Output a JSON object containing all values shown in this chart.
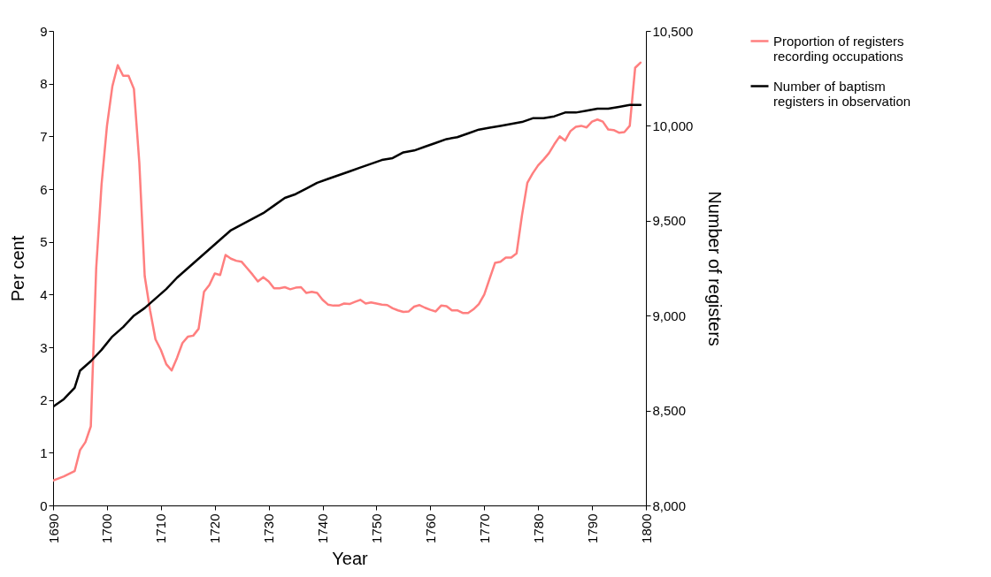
{
  "chart_data": {
    "type": "line",
    "xlabel": "Year",
    "ylabel": "Per cent",
    "y2label": "Number of registers",
    "xlim": [
      1690,
      1800
    ],
    "xticks": [
      1690,
      1700,
      1710,
      1720,
      1730,
      1740,
      1750,
      1760,
      1770,
      1780,
      1790,
      1800
    ],
    "ylim": [
      0,
      9
    ],
    "yticks": [
      0,
      1,
      2,
      3,
      4,
      5,
      6,
      7,
      8,
      9
    ],
    "y2lim": [
      8000,
      10500
    ],
    "y2ticks": [
      {
        "value": 8000,
        "label": "8,000"
      },
      {
        "value": 8500,
        "label": "8,500"
      },
      {
        "value": 9000,
        "label": "9,000"
      },
      {
        "value": 9500,
        "label": "9,500"
      },
      {
        "value": 10000,
        "label": "10,000"
      },
      {
        "value": 10500,
        "label": "10,500"
      }
    ],
    "grid": false,
    "legend": "right",
    "marker": "none",
    "line_style": "solid",
    "series": [
      {
        "name": "Proportion of registers recording occupations",
        "color": "#ff7f7f",
        "x": [
          1690,
          1692,
          1694,
          1695,
          1696,
          1697,
          1698,
          1699,
          1700,
          1701,
          1702,
          1703,
          1704,
          1705,
          1706,
          1707,
          1708,
          1709,
          1710,
          1711,
          1712,
          1713,
          1714,
          1715,
          1716,
          1717,
          1718,
          1719,
          1720,
          1721,
          1722,
          1723,
          1724,
          1725,
          1726,
          1727,
          1728,
          1729,
          1730,
          1731,
          1732,
          1733,
          1734,
          1735,
          1736,
          1737,
          1738,
          1739,
          1740,
          1741,
          1742,
          1743,
          1744,
          1745,
          1746,
          1747,
          1748,
          1749,
          1750,
          1751,
          1752,
          1753,
          1754,
          1755,
          1756,
          1757,
          1758,
          1759,
          1760,
          1761,
          1762,
          1763,
          1764,
          1765,
          1766,
          1767,
          1768,
          1769,
          1770,
          1771,
          1772,
          1773,
          1774,
          1775,
          1776,
          1777,
          1778,
          1779,
          1780,
          1781,
          1782,
          1783,
          1784,
          1785,
          1786,
          1787,
          1788,
          1789,
          1790,
          1791,
          1792,
          1793,
          1794,
          1795,
          1796,
          1797,
          1798,
          1799
        ],
        "values": [
          0.47,
          0.55,
          0.65,
          1.05,
          1.2,
          1.5,
          4.5,
          6.1,
          7.2,
          7.95,
          8.35,
          8.15,
          8.15,
          7.9,
          6.5,
          4.35,
          3.7,
          3.15,
          2.95,
          2.68,
          2.56,
          2.8,
          3.08,
          3.2,
          3.22,
          3.35,
          4.05,
          4.18,
          4.4,
          4.37,
          4.75,
          4.68,
          4.64,
          4.62,
          4.5,
          4.38,
          4.25,
          4.33,
          4.25,
          4.12,
          4.12,
          4.14,
          4.1,
          4.13,
          4.14,
          4.03,
          4.05,
          4.03,
          3.9,
          3.81,
          3.79,
          3.79,
          3.83,
          3.82,
          3.86,
          3.9,
          3.83,
          3.85,
          3.83,
          3.81,
          3.8,
          3.74,
          3.7,
          3.67,
          3.68,
          3.77,
          3.8,
          3.75,
          3.71,
          3.68,
          3.79,
          3.78,
          3.7,
          3.7,
          3.65,
          3.65,
          3.72,
          3.82,
          4.0,
          4.3,
          4.6,
          4.62,
          4.7,
          4.7,
          4.78,
          5.5,
          6.12,
          6.3,
          6.45,
          6.56,
          6.68,
          6.85,
          7.0,
          6.92,
          7.1,
          7.18,
          7.2,
          7.17,
          7.28,
          7.32,
          7.28,
          7.13,
          7.12,
          7.07,
          7.08,
          7.2,
          8.3,
          8.4
        ]
      },
      {
        "name": "Number of baptism registers in observation",
        "color": "#000000",
        "axis": "y2",
        "x": [
          1690,
          1692,
          1694,
          1695,
          1697,
          1699,
          1701,
          1703,
          1705,
          1707,
          1709,
          1711,
          1713,
          1715,
          1717,
          1719,
          1721,
          1723,
          1725,
          1727,
          1729,
          1731,
          1733,
          1735,
          1737,
          1739,
          1741,
          1743,
          1745,
          1747,
          1749,
          1751,
          1753,
          1755,
          1757,
          1759,
          1761,
          1763,
          1765,
          1767,
          1769,
          1771,
          1773,
          1775,
          1777,
          1779,
          1781,
          1783,
          1785,
          1787,
          1789,
          1791,
          1793,
          1795,
          1797,
          1799
        ],
        "values": [
          8520,
          8560,
          8620,
          8710,
          8760,
          8820,
          8890,
          8940,
          9000,
          9040,
          9090,
          9140,
          9200,
          9250,
          9300,
          9350,
          9400,
          9450,
          9480,
          9510,
          9540,
          9580,
          9620,
          9640,
          9670,
          9700,
          9720,
          9740,
          9760,
          9780,
          9800,
          9820,
          9830,
          9860,
          9870,
          9890,
          9910,
          9930,
          9940,
          9960,
          9980,
          9990,
          10000,
          10010,
          10020,
          10040,
          10040,
          10050,
          10070,
          10070,
          10080,
          10090,
          10090,
          10100,
          10110,
          10110
        ]
      }
    ]
  }
}
